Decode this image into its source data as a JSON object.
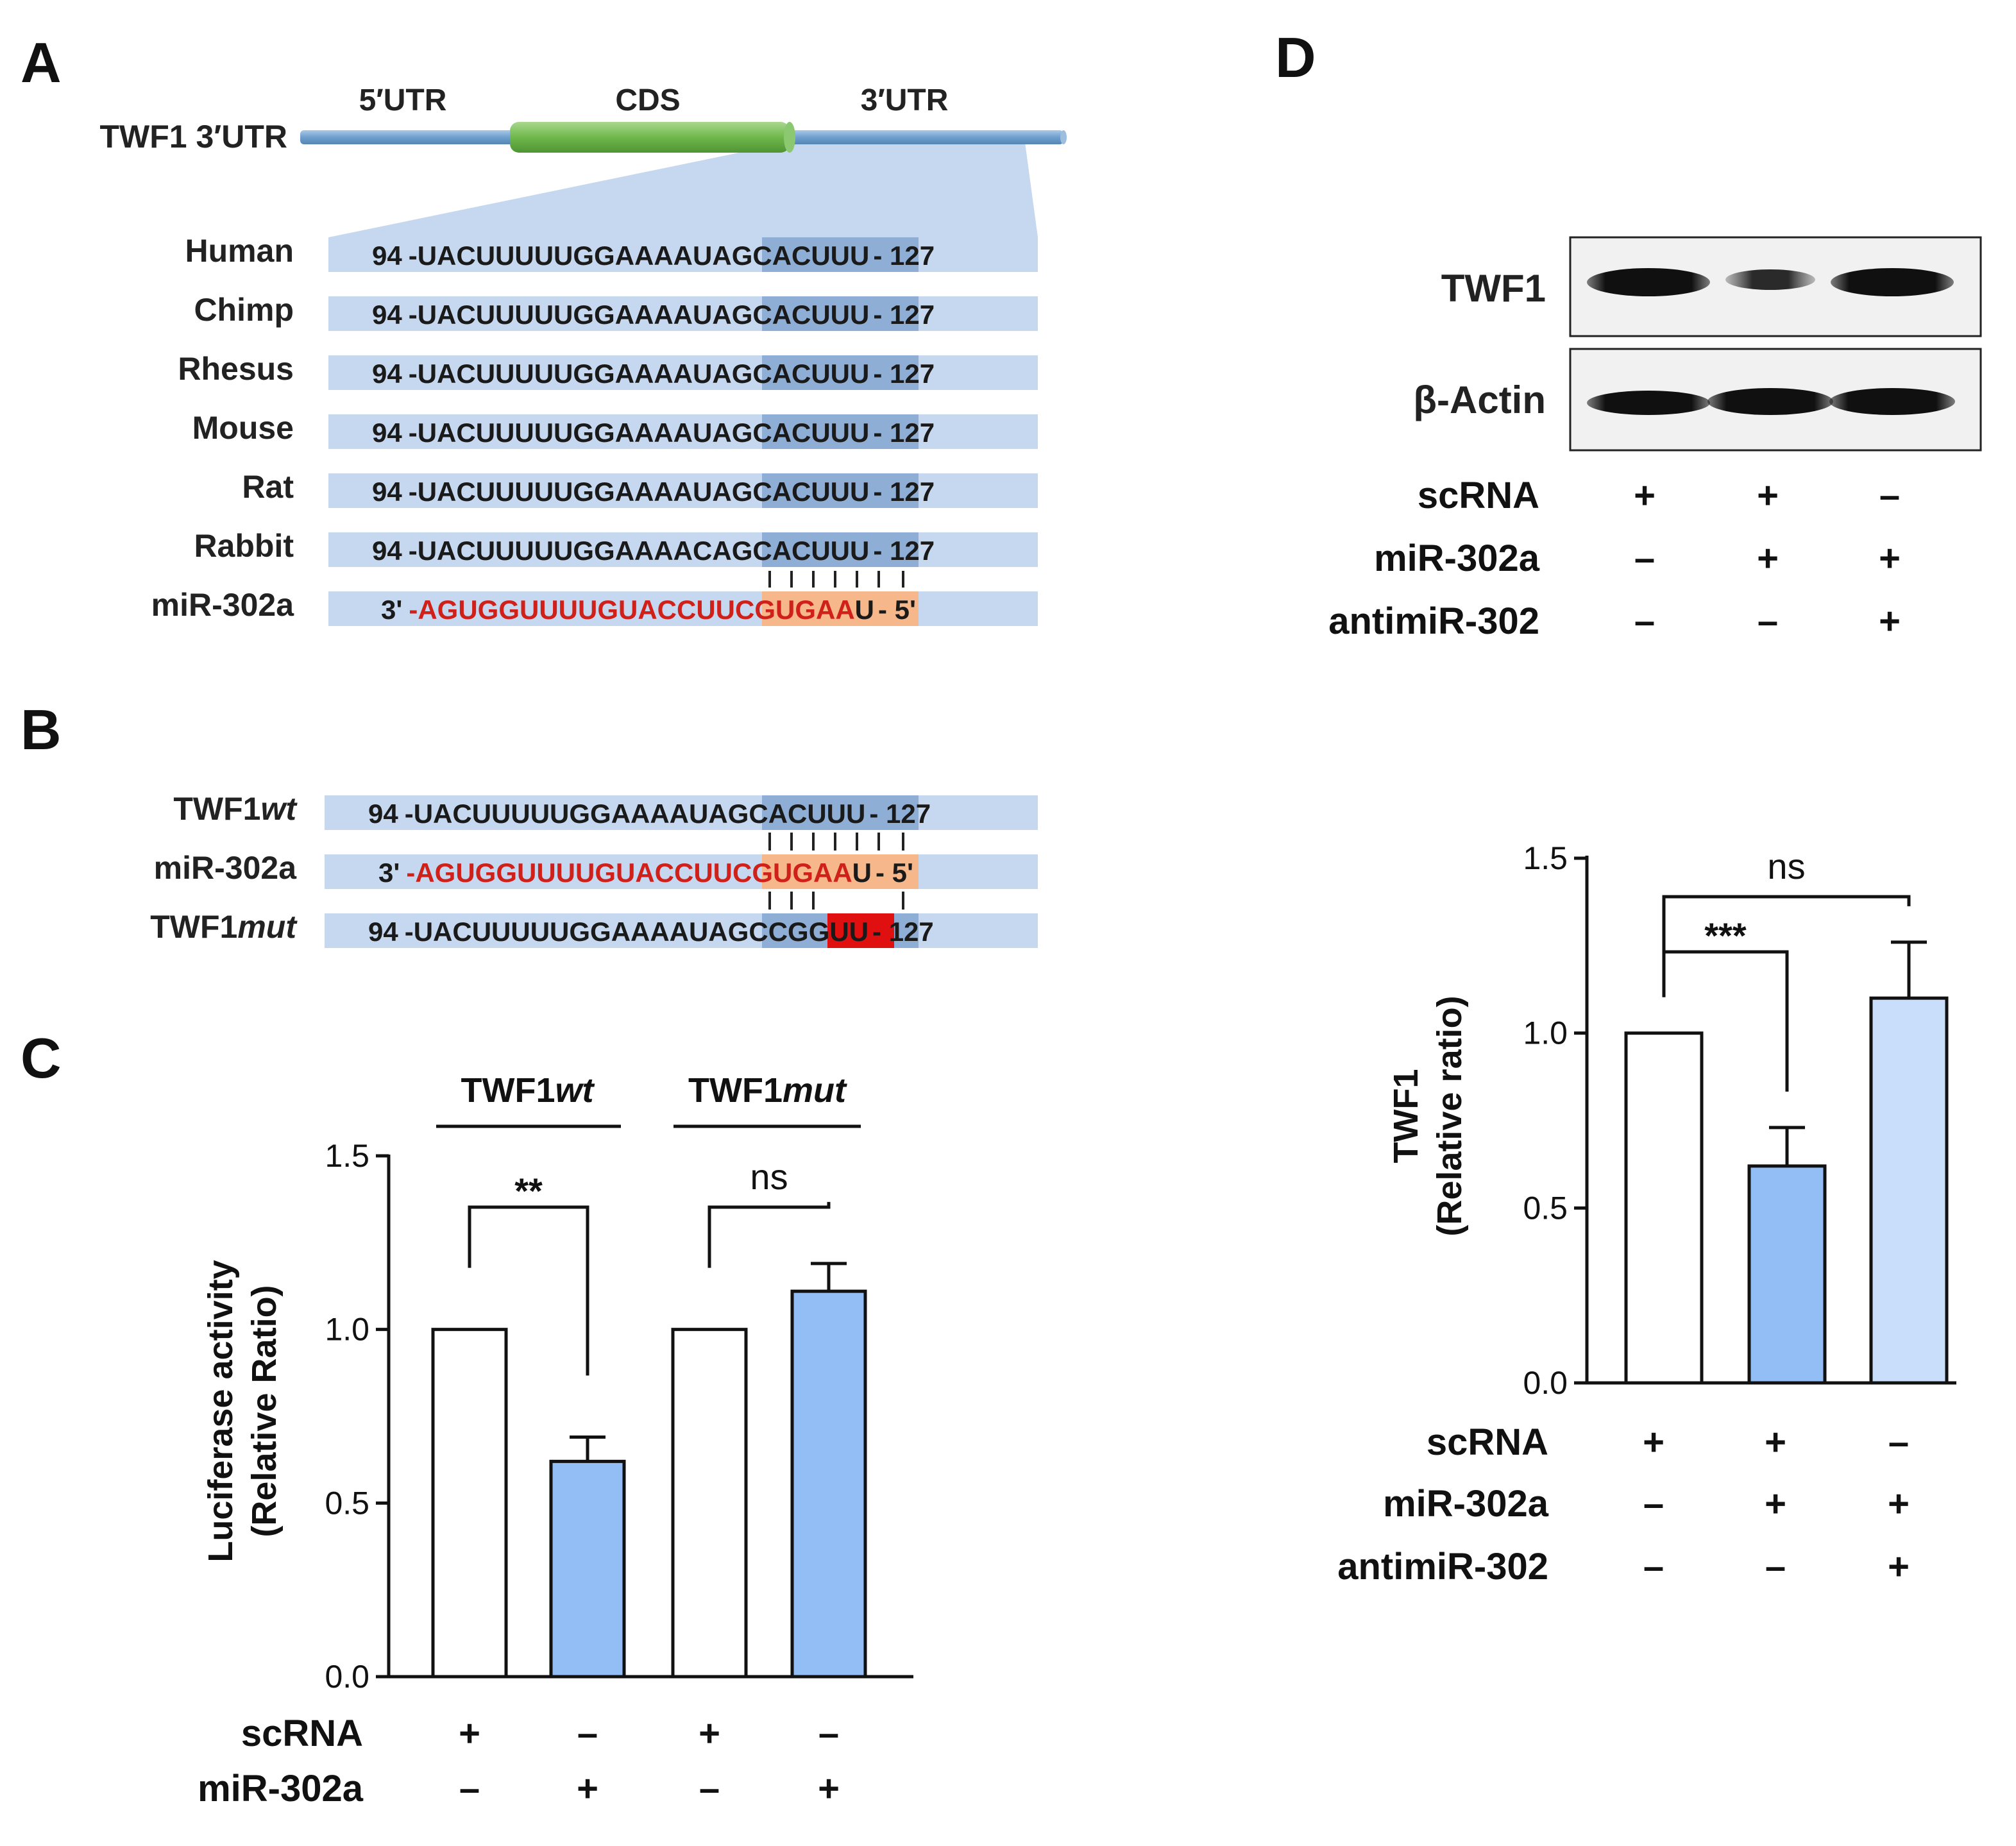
{
  "panels": {
    "a": {
      "letter": "A",
      "gene_label": "TWF1 3′UTR",
      "regions": [
        "5′UTR",
        "CDS",
        "3′UTR"
      ],
      "rows": [
        {
          "species": "Human",
          "start": "94",
          "pre": "-UACUUUUUGGAAAAU",
          "core": "AGCACUU",
          "post": "U",
          "end": "- 127"
        },
        {
          "species": "Chimp",
          "start": "94",
          "pre": "-UACUUUUUGGAAAAU",
          "core": "AGCACUU",
          "post": "U",
          "end": "- 127"
        },
        {
          "species": "Rhesus",
          "start": "94",
          "pre": "-UACUUUUUGGAAAAU",
          "core": "AGCACUU",
          "post": "U",
          "end": "- 127"
        },
        {
          "species": "Mouse",
          "start": "94",
          "pre": "-UACUUUUUGGAAAAU",
          "core": "AGCACUU",
          "post": "U",
          "end": "- 127"
        },
        {
          "species": "Rat",
          "start": "94",
          "pre": "-UACUUUUUGGAAAAU",
          "core": "AGCACUU",
          "post": "U",
          "end": "- 127"
        },
        {
          "species": "Rabbit",
          "start": "94",
          "pre": "-UACUUUUUGGAAAAC",
          "core": "AGCACUU",
          "post": "U",
          "end": "- 127"
        }
      ],
      "mirna": {
        "name": "miR-302a",
        "start": "3'",
        "pre": "-AGUGGUUUUGUACCU",
        "core": "UCGUGAA",
        "post": "U",
        "end": "- 5'"
      }
    },
    "b": {
      "letter": "B",
      "wt": {
        "name_plain": "TWF1",
        "name_italic": "wt",
        "start": "94",
        "pre": "-UACUUUUUGGAAAAU",
        "core": "AGCACUU",
        "post": "U",
        "end": "- 127"
      },
      "mirna": {
        "name": "miR-302a",
        "start": "3'",
        "pre": "-AGUGGUUUUGUACCU",
        "core": "UCGUGAA",
        "post": "U",
        "end": "- 5'"
      },
      "mut": {
        "name_plain": "TWF1",
        "name_italic": "mut",
        "start": "94",
        "pre": "-UACUUUUUGGAAAAU",
        "core_a": "AGC",
        "core_mut": "CGG",
        "core_b": "UU",
        "end": "- 127"
      }
    },
    "c": {
      "letter": "C"
    },
    "d": {
      "letter": "D",
      "blot_labels": [
        "TWF1",
        "β-Actin"
      ]
    }
  },
  "conditions": {
    "c": [
      {
        "name": "scRNA",
        "signs": [
          "+",
          "–",
          "+",
          "–"
        ]
      },
      {
        "name": "miR-302a",
        "signs": [
          "–",
          "+",
          "–",
          "+"
        ]
      }
    ],
    "d": [
      {
        "name": "scRNA",
        "signs": [
          "+",
          "+",
          "–"
        ]
      },
      {
        "name": "miR-302a",
        "signs": [
          "–",
          "+",
          "+"
        ]
      },
      {
        "name": "antimiR-302",
        "signs": [
          "–",
          "–",
          "+"
        ]
      }
    ]
  },
  "chart_data": [
    {
      "id": "C",
      "type": "bar",
      "ylabel_line1": "Luciferase activity",
      "ylabel_line2": "(Relative Ratio)",
      "ylim": [
        0,
        1.5
      ],
      "yticks": [
        "0.0",
        "0.5",
        "1.0",
        "1.5"
      ],
      "groups": [
        {
          "label_plain": "TWF1",
          "label_italic": "wt"
        },
        {
          "label_plain": "TWF1",
          "label_italic": "mut"
        }
      ],
      "bars": [
        {
          "value": 1.0,
          "error": 0.0,
          "color": "#ffffff"
        },
        {
          "value": 0.62,
          "error": 0.07,
          "color": "#92bdf5"
        },
        {
          "value": 1.0,
          "error": 0.0,
          "color": "#ffffff"
        },
        {
          "value": 1.11,
          "error": 0.08,
          "color": "#92bdf5"
        }
      ],
      "significance": [
        {
          "from": 0,
          "to": 1,
          "label": "**"
        },
        {
          "from": 2,
          "to": 3,
          "label": "ns"
        }
      ]
    },
    {
      "id": "D",
      "type": "bar",
      "ylabel_line1": "TWF1",
      "ylabel_line2": "(Relative ratio)",
      "ylim": [
        0,
        1.5
      ],
      "yticks": [
        "0.0",
        "0.5",
        "1.0",
        "1.5"
      ],
      "bars": [
        {
          "value": 1.0,
          "error": 0.0,
          "color": "#ffffff"
        },
        {
          "value": 0.62,
          "error": 0.11,
          "color": "#92bdf5"
        },
        {
          "value": 1.1,
          "error": 0.16,
          "color": "#c9defa"
        }
      ],
      "significance": [
        {
          "from": 0,
          "to": 1,
          "label": "***"
        },
        {
          "from": 0,
          "to": 2,
          "label": "ns"
        }
      ]
    }
  ]
}
